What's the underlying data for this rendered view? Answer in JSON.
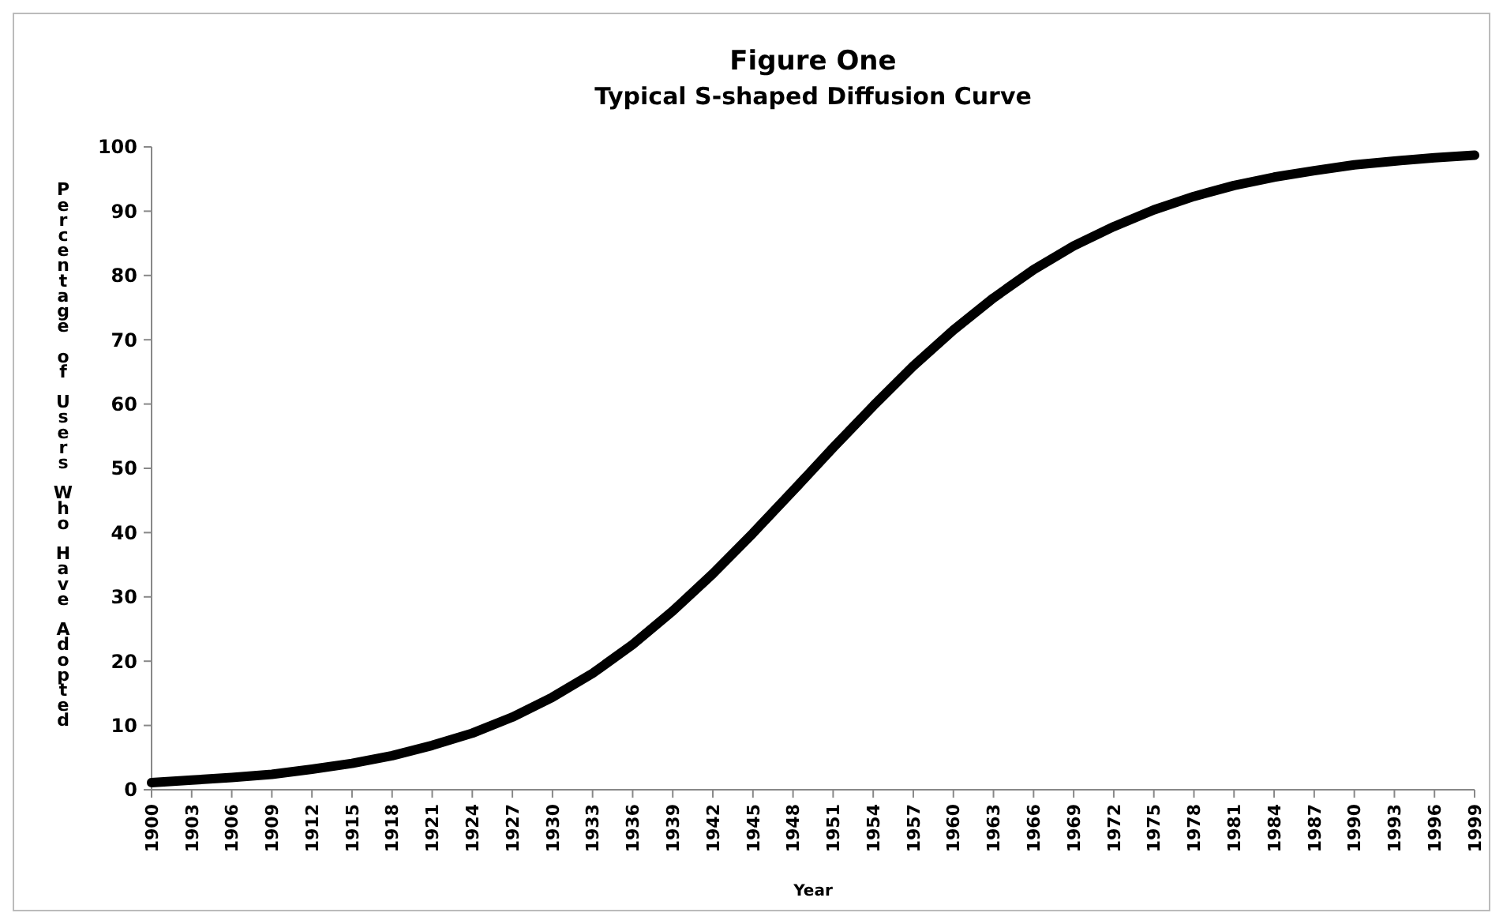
{
  "chart_data": {
    "type": "line",
    "title": "Figure One",
    "subtitle": "Typical S-shaped Diffusion Curve",
    "xlabel": "Year",
    "ylabel": "Percentage of Users Who Have Adopted",
    "x": [
      1900,
      1903,
      1906,
      1909,
      1912,
      1915,
      1918,
      1921,
      1924,
      1927,
      1930,
      1933,
      1936,
      1939,
      1942,
      1945,
      1948,
      1951,
      1954,
      1957,
      1960,
      1963,
      1966,
      1969,
      1972,
      1975,
      1978,
      1981,
      1984,
      1987,
      1990,
      1993,
      1996,
      1999
    ],
    "series": [
      {
        "color": "#000000",
        "values": [
          1.1,
          1.5,
          1.9,
          2.4,
          3.2,
          4.1,
          5.3,
          6.9,
          8.8,
          11.3,
          14.4,
          18.1,
          22.6,
          27.8,
          33.6,
          39.9,
          46.5,
          53.2,
          59.7,
          65.9,
          71.5,
          76.5,
          80.9,
          84.6,
          87.6,
          90.2,
          92.3,
          94.0,
          95.3,
          96.3,
          97.2,
          97.8,
          98.3,
          98.7
        ]
      }
    ],
    "xlim": [
      1900,
      1999
    ],
    "xticks": [
      1900,
      1903,
      1906,
      1909,
      1912,
      1915,
      1918,
      1921,
      1924,
      1927,
      1930,
      1933,
      1936,
      1939,
      1942,
      1945,
      1948,
      1951,
      1954,
      1957,
      1960,
      1963,
      1966,
      1969,
      1972,
      1975,
      1978,
      1981,
      1984,
      1987,
      1990,
      1993,
      1996,
      1999
    ],
    "ylim": [
      0,
      100
    ],
    "yticks": [
      0,
      10,
      20,
      30,
      40,
      50,
      60,
      70,
      80,
      90,
      100
    ],
    "grid": false,
    "marker": "none",
    "line_style": "solid"
  }
}
